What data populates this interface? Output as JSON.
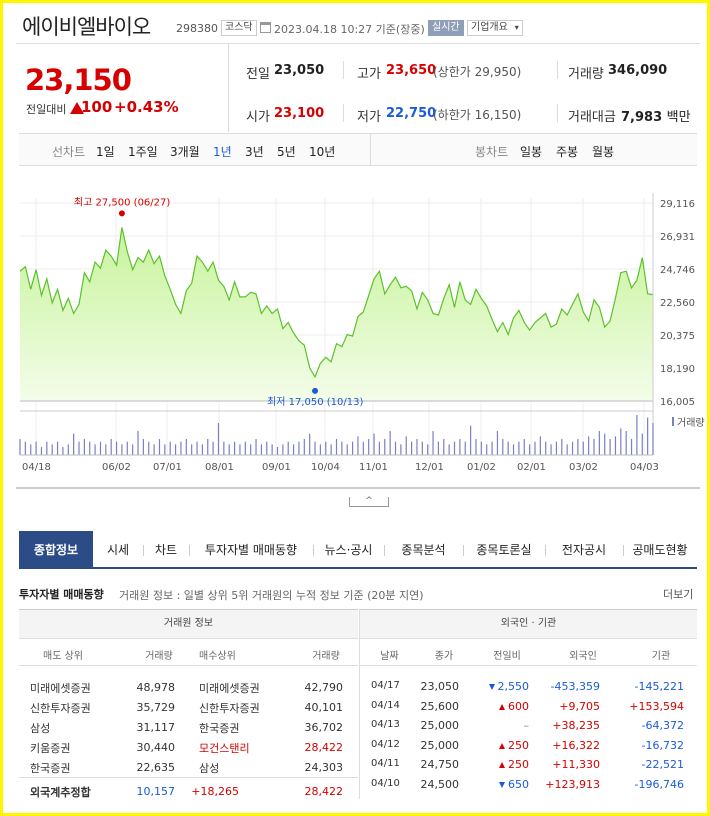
{
  "header": {
    "name": "에이비엘바이오",
    "code": "298380",
    "market": "코스닥",
    "datetime": "2023.04.18 10:27 기준(장중)",
    "realtime": "실시간",
    "company_info": "기업개요"
  },
  "quote": {
    "price": "23,150",
    "change_label": "전일대비",
    "change": "100",
    "change_pct": "+0.43%",
    "prev_label": "전일",
    "prev": "23,050",
    "high_label": "고가",
    "high": "23,650",
    "upper_limit": "(상한가 29,950)",
    "volume_label": "거래량",
    "volume": "346,090",
    "open_label": "시가",
    "open": "23,100",
    "low_label": "저가",
    "low": "22,750",
    "lower_limit": "(하한가 16,150)",
    "amount_label": "거래대금",
    "amount": "7,983",
    "amount_unit": "백만"
  },
  "chart_tabs": {
    "line_label": "선차트",
    "periods": [
      "1일",
      "1주일",
      "3개월",
      "1년",
      "3년",
      "5년",
      "10년"
    ],
    "active": "1년",
    "candle_label": "봉차트",
    "candles": [
      "일봉",
      "주봉",
      "월봉"
    ]
  },
  "chart_data": {
    "type": "area",
    "ylim": [
      16005,
      29116
    ],
    "yticks": [
      "29,116",
      "26,931",
      "24,746",
      "22,560",
      "20,375",
      "18,190",
      "16,005"
    ],
    "xticks": [
      "04/18",
      "06/02",
      "07/01",
      "08/01",
      "09/01",
      "10/04",
      "11/01",
      "12/01",
      "01/02",
      "02/01",
      "03/02",
      "04/03"
    ],
    "max_label": "최고 27,500 (06/27)",
    "min_label": "최저 17,050 (10/13)",
    "volume_legend": "거래량",
    "values": [
      24600,
      24900,
      23400,
      24700,
      23000,
      24100,
      22500,
      23400,
      22000,
      22800,
      21800,
      22400,
      24500,
      23900,
      25200,
      24800,
      26000,
      25600,
      25000,
      27500,
      25900,
      24700,
      25500,
      25200,
      26000,
      25100,
      25600,
      24300,
      23400,
      22400,
      21800,
      23300,
      23800,
      25600,
      25200,
      24600,
      25200,
      24000,
      23600,
      22700,
      23900,
      22900,
      22900,
      23200,
      23100,
      21800,
      22300,
      21800,
      22100,
      20800,
      21200,
      20500,
      20000,
      19700,
      18200,
      17600,
      18500,
      18900,
      18600,
      19800,
      19600,
      20400,
      20300,
      21600,
      21900,
      23000,
      24100,
      24600,
      23100,
      23700,
      24200,
      23500,
      23600,
      23300,
      22100,
      23200,
      22700,
      21800,
      21700,
      22800,
      23700,
      22200,
      23900,
      22700,
      22400,
      23400,
      22800,
      22300,
      21400,
      20600,
      21200,
      20400,
      21500,
      22000,
      21200,
      20700,
      21200,
      21500,
      21800,
      20900,
      21100,
      22100,
      21700,
      22400,
      23100,
      21900,
      21300,
      22700,
      22200,
      20900,
      21300,
      22800,
      24500,
      24600,
      23500,
      24000,
      25500,
      23100,
      23050
    ],
    "volume": [
      6,
      5,
      4,
      5,
      3,
      5,
      4,
      5,
      3,
      4,
      8,
      5,
      6,
      5,
      4,
      5,
      4,
      6,
      5,
      4,
      5,
      4,
      9,
      6,
      5,
      4,
      6,
      4,
      5,
      4,
      5,
      6,
      4,
      5,
      4,
      6,
      5,
      12,
      5,
      4,
      5,
      4,
      5,
      4,
      6,
      4,
      5,
      4,
      3,
      4,
      5,
      4,
      5,
      6,
      8,
      5,
      4,
      5,
      4,
      6,
      5,
      4,
      5,
      7,
      5,
      6,
      8,
      5,
      6,
      9,
      5,
      4,
      7,
      5,
      6,
      5,
      4,
      9,
      5,
      6,
      4,
      5,
      6,
      5,
      11,
      6,
      5,
      4,
      5,
      9,
      6,
      5,
      4,
      5,
      6,
      4,
      5,
      7,
      5,
      4,
      5,
      6,
      4,
      5,
      6,
      5,
      7,
      6,
      9,
      8,
      6,
      7,
      10,
      9,
      6,
      15,
      8,
      14,
      12
    ]
  },
  "main_tabs": [
    "종합정보",
    "시세",
    "차트",
    "투자자별 매매동향",
    "뉴스·공시",
    "종목분석",
    "종목토론실",
    "전자공시",
    "공매도현황"
  ],
  "investor": {
    "title": "투자자별 매매동향",
    "desc": "거래원 정보 : 일별 상위 5위 거래원의 누적 정보 기준 (20분 지연)",
    "more": "더보기",
    "broker_header": "거래원 정보",
    "broker_cols": [
      "매도 상위",
      "거래량",
      "매수상위",
      "거래량"
    ],
    "brokers": [
      {
        "sell": "미래에셋증권",
        "sell_vol": "48,978",
        "buy": "미래에셋증권",
        "buy_vol": "42,790"
      },
      {
        "sell": "신한투자증권",
        "sell_vol": "35,729",
        "buy": "신한투자증권",
        "buy_vol": "40,101"
      },
      {
        "sell": "삼성",
        "sell_vol": "31,117",
        "buy": "한국증권",
        "buy_vol": "36,702"
      },
      {
        "sell": "키움증권",
        "sell_vol": "30,440",
        "buy": "모건스탠리",
        "buy_vol": "28,422"
      },
      {
        "sell": "한국증권",
        "sell_vol": "22,635",
        "buy": "삼성",
        "buy_vol": "24,303"
      }
    ],
    "foreign_total": {
      "label": "외국계추정합",
      "sell": "10,157",
      "net": "+18,265",
      "buy": "28,422"
    },
    "foreign_header": "외국인 · 기관",
    "foreign_cols": [
      "날짜",
      "종가",
      "전일비",
      "외국인",
      "기관"
    ],
    "foreign_rows": [
      {
        "date": "04/17",
        "close": "23,050",
        "dir": "down",
        "diff": "2,550",
        "foreign": "-453,359",
        "inst": "-145,221"
      },
      {
        "date": "04/14",
        "close": "25,600",
        "dir": "up",
        "diff": "600",
        "foreign": "+9,705",
        "inst": "+153,594"
      },
      {
        "date": "04/13",
        "close": "25,000",
        "dir": "none",
        "diff": "–",
        "foreign": "+38,235",
        "inst": "-64,372"
      },
      {
        "date": "04/12",
        "close": "25,000",
        "dir": "up",
        "diff": "250",
        "foreign": "+16,322",
        "inst": "-16,732"
      },
      {
        "date": "04/11",
        "close": "24,750",
        "dir": "up",
        "diff": "250",
        "foreign": "+11,330",
        "inst": "-22,521"
      },
      {
        "date": "04/10",
        "close": "24,500",
        "dir": "down",
        "diff": "650",
        "foreign": "+123,913",
        "inst": "-196,746"
      }
    ]
  }
}
